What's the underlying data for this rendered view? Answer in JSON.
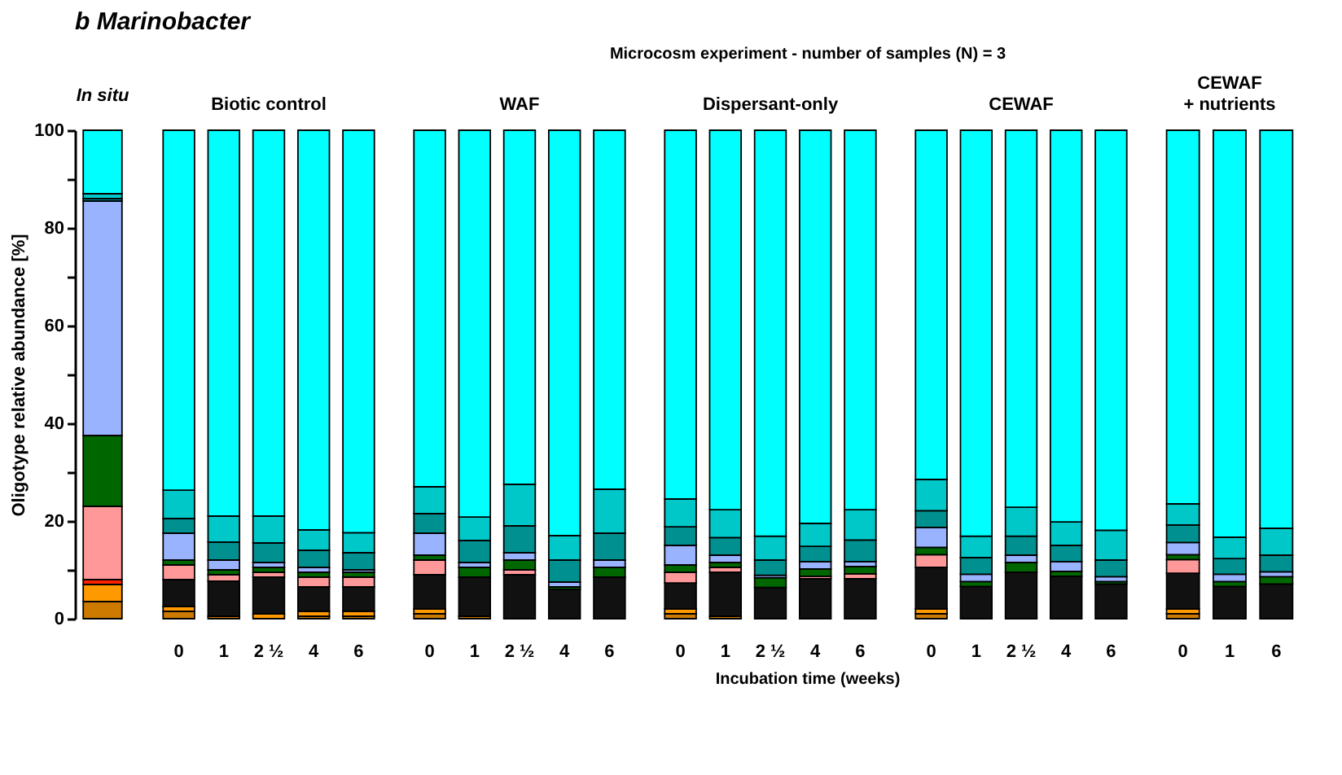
{
  "chart_data": [
    {
      "type": "bar",
      "stacked": true,
      "title": "In situ",
      "ylabel": "Oligotype relative abundance [%]",
      "annotations": [
        "b  Marinobacter"
      ],
      "categories": [
        null
      ],
      "ylim": [
        0,
        100
      ],
      "yticks": [
        0,
        {
          "value": 10,
          "label": null
        },
        20,
        {
          "value": 30,
          "label": null
        },
        40,
        {
          "value": 50,
          "label": null
        },
        60,
        {
          "value": 70,
          "label": null
        },
        80,
        {
          "value": 90,
          "label": null
        },
        100
      ],
      "tick_labels": "y",
      "grid": false,
      "legend": false,
      "series": [
        {
          "color": "#cc7a00",
          "values": [
            3.5
          ]
        },
        {
          "color": "#ff9900",
          "values": [
            3.5
          ]
        },
        {
          "color": "#111111",
          "values": [
            0
          ]
        },
        {
          "color": "#ff2200",
          "values": [
            1
          ]
        },
        {
          "color": "#ff9999",
          "values": [
            15
          ]
        },
        {
          "color": "#006600",
          "values": [
            14.5
          ]
        },
        {
          "color": "#99b3ff",
          "values": [
            48
          ]
        },
        {
          "color": "#009090",
          "values": [
            0.5
          ]
        },
        {
          "color": "#00c8c8",
          "values": [
            1
          ]
        },
        {
          "color": "#00ffff",
          "values": [
            13
          ]
        }
      ]
    },
    {
      "type": "bar",
      "stacked": true,
      "title": "Biotic control",
      "annotations": [
        "Microcosm experiment - number of samples (N) = 3",
        "Incubation time (weeks)"
      ],
      "categories": [
        "0",
        "1",
        "2 ½",
        "4",
        "6"
      ],
      "ylim": [
        0,
        100
      ],
      "tick_labels": "x",
      "grid": false,
      "legend": false,
      "series": [
        {
          "color": "#cc7a00",
          "values": [
            1.5,
            0.5,
            0,
            0.5,
            0.5
          ]
        },
        {
          "color": "#ff9900",
          "values": [
            1,
            0,
            1,
            1,
            1
          ]
        },
        {
          "color": "#111111",
          "values": [
            5.5,
            7.2,
            7.5,
            5,
            5
          ]
        },
        {
          "color": "#ff2200",
          "values": [
            0,
            0,
            0,
            0,
            0
          ]
        },
        {
          "color": "#ff9999",
          "values": [
            3,
            1.3,
            1,
            2,
            2
          ]
        },
        {
          "color": "#006600",
          "values": [
            1,
            1,
            1,
            1,
            1
          ]
        },
        {
          "color": "#99b3ff",
          "values": [
            5.5,
            2,
            1,
            1,
            0.5
          ]
        },
        {
          "color": "#009090",
          "values": [
            3,
            3.7,
            4,
            3.5,
            3.5
          ]
        },
        {
          "color": "#00c8c8",
          "values": [
            5.8,
            5.3,
            5.5,
            4.2,
            4.1
          ]
        },
        {
          "color": "#00ffff",
          "values": [
            73.7,
            79,
            79,
            81.8,
            82.4
          ]
        }
      ]
    },
    {
      "type": "bar",
      "stacked": true,
      "title": "WAF",
      "categories": [
        "0",
        "1",
        "2 ½",
        "4",
        "6"
      ],
      "ylim": [
        0,
        100
      ],
      "tick_labels": "x",
      "grid": false,
      "legend": false,
      "series": [
        {
          "color": "#cc7a00",
          "values": [
            1,
            0.5,
            0,
            0,
            0
          ]
        },
        {
          "color": "#ff9900",
          "values": [
            1,
            0,
            0,
            0,
            0
          ]
        },
        {
          "color": "#111111",
          "values": [
            7,
            8,
            9,
            6,
            8.5
          ]
        },
        {
          "color": "#ff2200",
          "values": [
            0,
            0,
            0,
            0,
            0
          ]
        },
        {
          "color": "#ff9999",
          "values": [
            3,
            0,
            1,
            0,
            0
          ]
        },
        {
          "color": "#006600",
          "values": [
            1,
            2,
            2,
            0.5,
            2
          ]
        },
        {
          "color": "#99b3ff",
          "values": [
            4.5,
            1,
            1.5,
            1,
            1.5
          ]
        },
        {
          "color": "#009090",
          "values": [
            4,
            4.5,
            5.5,
            4.5,
            5.5
          ]
        },
        {
          "color": "#00c8c8",
          "values": [
            5.5,
            4.8,
            8.5,
            5,
            9
          ]
        },
        {
          "color": "#00ffff",
          "values": [
            73,
            79.2,
            72.5,
            83,
            73.5
          ]
        }
      ]
    },
    {
      "type": "bar",
      "stacked": true,
      "title": "Dispersant-only",
      "categories": [
        "0",
        "1",
        "2 ½",
        "4",
        "6"
      ],
      "ylim": [
        0,
        100
      ],
      "tick_labels": "x",
      "grid": false,
      "legend": false,
      "series": [
        {
          "color": "#cc7a00",
          "values": [
            1,
            0.5,
            0,
            0,
            0
          ]
        },
        {
          "color": "#ff9900",
          "values": [
            1,
            0,
            0,
            0,
            0
          ]
        },
        {
          "color": "#111111",
          "values": [
            5.3,
            9,
            6.4,
            8.2,
            8.2
          ]
        },
        {
          "color": "#ff2200",
          "values": [
            0,
            0,
            0,
            0,
            0
          ]
        },
        {
          "color": "#ff9999",
          "values": [
            2.2,
            1,
            0,
            0.5,
            1
          ]
        },
        {
          "color": "#006600",
          "values": [
            1.5,
            1,
            2,
            1.5,
            1.5
          ]
        },
        {
          "color": "#99b3ff",
          "values": [
            4,
            1.5,
            0.5,
            1.5,
            1
          ]
        },
        {
          "color": "#009090",
          "values": [
            3.8,
            3.6,
            3.1,
            3.1,
            4.4
          ]
        },
        {
          "color": "#00c8c8",
          "values": [
            5.7,
            5.7,
            4.9,
            4.7,
            6.2
          ]
        },
        {
          "color": "#00ffff",
          "values": [
            75.5,
            77.7,
            83.1,
            80.5,
            77.7
          ]
        }
      ]
    },
    {
      "type": "bar",
      "stacked": true,
      "title": "CEWAF",
      "categories": [
        "0",
        "1",
        "2 ½",
        "4",
        "6"
      ],
      "ylim": [
        0,
        100
      ],
      "tick_labels": "x",
      "grid": false,
      "legend": false,
      "series": [
        {
          "color": "#cc7a00",
          "values": [
            1,
            0,
            0,
            0,
            0
          ]
        },
        {
          "color": "#ff9900",
          "values": [
            1,
            0,
            0,
            0,
            0
          ]
        },
        {
          "color": "#111111",
          "values": [
            8.5,
            6.6,
            9.5,
            8.7,
            7.1
          ]
        },
        {
          "color": "#ff2200",
          "values": [
            0,
            0,
            0,
            0,
            0
          ]
        },
        {
          "color": "#ff9999",
          "values": [
            2.6,
            0,
            0,
            0,
            0
          ]
        },
        {
          "color": "#006600",
          "values": [
            1.5,
            1,
            2,
            1,
            0.5
          ]
        },
        {
          "color": "#99b3ff",
          "values": [
            4.1,
            1.5,
            1.5,
            2,
            1
          ]
        },
        {
          "color": "#009090",
          "values": [
            3.4,
            3.4,
            3.9,
            3.3,
            3.4
          ]
        },
        {
          "color": "#00c8c8",
          "values": [
            6.4,
            4.4,
            5.9,
            4.8,
            6.1
          ]
        },
        {
          "color": "#00ffff",
          "values": [
            71.5,
            83.1,
            77.2,
            80.2,
            81.9
          ]
        }
      ]
    },
    {
      "type": "bar",
      "stacked": true,
      "title": "CEWAF\n+ nutrients",
      "categories": [
        "0",
        "1",
        "6"
      ],
      "ylim": [
        0,
        100
      ],
      "tick_labels": "x",
      "grid": false,
      "legend": false,
      "series": [
        {
          "color": "#cc7a00",
          "values": [
            1,
            0,
            0
          ]
        },
        {
          "color": "#ff9900",
          "values": [
            1,
            0,
            0
          ]
        },
        {
          "color": "#111111",
          "values": [
            7.3,
            6.6,
            7.1
          ]
        },
        {
          "color": "#ff2200",
          "values": [
            0,
            0,
            0
          ]
        },
        {
          "color": "#ff9999",
          "values": [
            2.8,
            0,
            0
          ]
        },
        {
          "color": "#006600",
          "values": [
            1,
            1,
            1.5
          ]
        },
        {
          "color": "#99b3ff",
          "values": [
            2.5,
            1.5,
            1
          ]
        },
        {
          "color": "#009090",
          "values": [
            3.6,
            3.2,
            3.4
          ]
        },
        {
          "color": "#00c8c8",
          "values": [
            4.3,
            4.4,
            5.5
          ]
        },
        {
          "color": "#00ffff",
          "values": [
            76.5,
            83.3,
            81.5
          ]
        }
      ]
    }
  ]
}
